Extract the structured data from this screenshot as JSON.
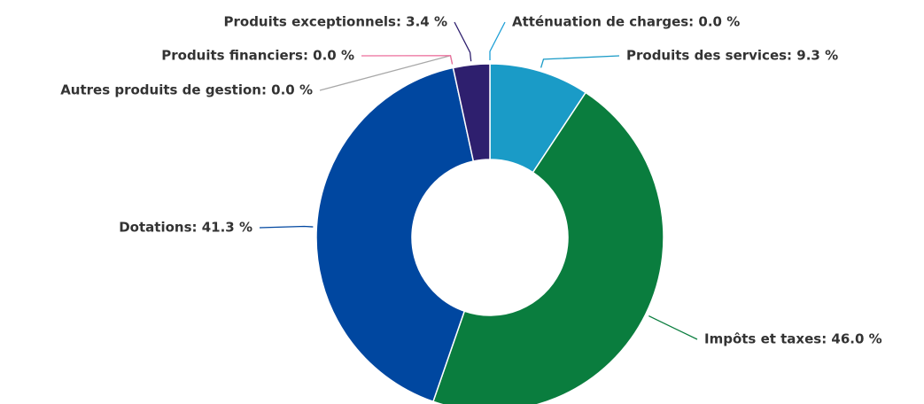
{
  "chart_data": {
    "type": "donut",
    "labels": [
      "Atténuation de charges: 0.0 %",
      "Produits des services: 9.3 %",
      "Impôts et taxes: 46.0 %",
      "Dotations: 41.3 %",
      "Autres produits de gestion: 0.0 %",
      "Produits financiers: 0.0 %",
      "Produits exceptionnels: 3.4 %"
    ],
    "values": [
      0.0,
      9.3,
      46.0,
      41.3,
      0.0,
      0.0,
      3.4
    ],
    "colors": [
      "#1d9fd6",
      "#1a9bc7",
      "#0a7d3e",
      "#0047a0",
      "#a8a8a8",
      "#ec6f9c",
      "#2e1f6e"
    ]
  }
}
